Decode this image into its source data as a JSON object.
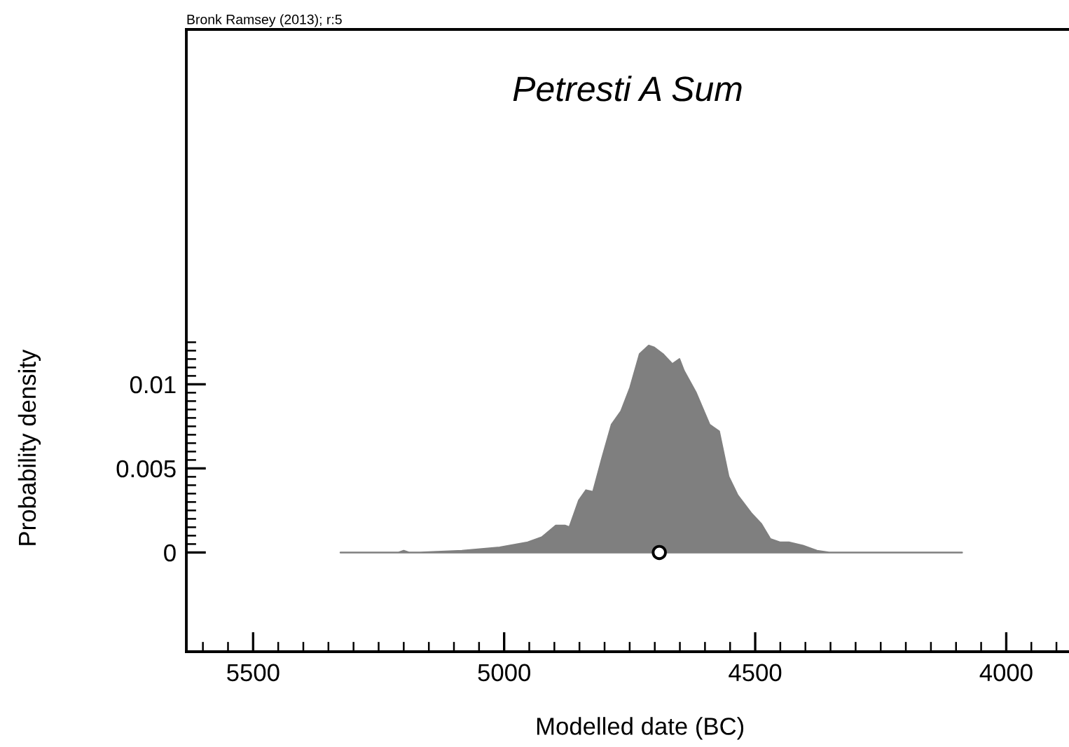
{
  "chart_data": {
    "type": "area",
    "title": "Petresti A Sum",
    "xlabel": "Modelled date (BC)",
    "ylabel": "Probability density",
    "annotations": [
      "Bronk Ramsey (2013); r:5"
    ],
    "xlim": [
      5633,
      3875
    ],
    "xticks": [
      5500,
      5000,
      4500,
      4000
    ],
    "ylim": [
      -0.0059,
      0.0311
    ],
    "yticks": [
      0,
      0.005,
      0.01
    ],
    "series": [
      {
        "color": "#7f7f7f",
        "x": [
          5326,
          5210,
          5200,
          5190,
          5167,
          5084,
          5009,
          4953,
          4925,
          4897,
          4879,
          4870,
          4851,
          4837,
          4823,
          4805,
          4786,
          4767,
          4749,
          4730,
          4712,
          4702,
          4684,
          4665,
          4651,
          4642,
          4618,
          4591,
          4572,
          4553,
          4535,
          4507,
          4488,
          4470,
          4451,
          4433,
          4405,
          4377,
          4353,
          4088
        ],
        "values": [
          0,
          0,
          0.0001,
          0,
          0,
          0.0001,
          0.0003,
          0.0006,
          0.0009,
          0.0016,
          0.0016,
          0.0015,
          0.0031,
          0.0037,
          0.0036,
          0.0056,
          0.0076,
          0.0084,
          0.0098,
          0.0118,
          0.0123,
          0.0122,
          0.0118,
          0.0112,
          0.0115,
          0.0108,
          0.0095,
          0.0076,
          0.0072,
          0.0045,
          0.0034,
          0.0023,
          0.0017,
          0.0008,
          0.0006,
          0.0006,
          0.0004,
          0.0001,
          0,
          0
        ]
      },
      {
        "type": "scatter",
        "color": "#000000",
        "marker": "circle",
        "x": [
          4691
        ],
        "values": [
          0
        ]
      }
    ]
  }
}
